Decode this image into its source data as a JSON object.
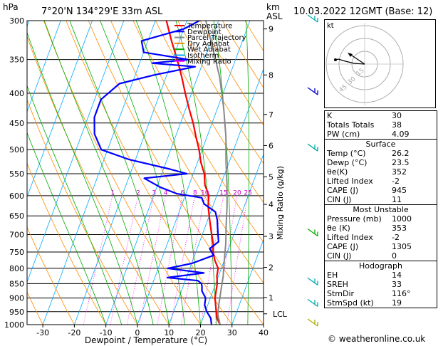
{
  "header": {
    "units_p": "hPa",
    "location": "7°20'N 134°29'E 33m ASL",
    "units_km": "km",
    "units_asl": "ASL",
    "date": "10.03.2022 12GMT (Base: 12)"
  },
  "legend": [
    {
      "label": "Temperature",
      "color": "#ff0000"
    },
    {
      "label": "Dewpoint",
      "color": "#0000ff"
    },
    {
      "label": "Parcel Trajectory",
      "color": "#888888"
    },
    {
      "label": "Dry Adiabat",
      "color": "#ff8c00"
    },
    {
      "label": "Wet Adiabat",
      "color": "#00aa00"
    },
    {
      "label": "Isotherm",
      "color": "#00aaff"
    },
    {
      "label": "Mixing Ratio",
      "color": "#ff00ff"
    }
  ],
  "chart_data": {
    "type": "line",
    "xlabel": "Dewpoint / Temperature (°C)",
    "ylabel_right": "Mixing Ratio (g/kg)",
    "x_ticks": [
      "-30",
      "-20",
      "-10",
      "0",
      "10",
      "20",
      "30",
      "40"
    ],
    "x_range": [
      -35,
      40
    ],
    "pressure_ticks": [
      "300",
      "350",
      "400",
      "450",
      "500",
      "550",
      "600",
      "650",
      "700",
      "750",
      "800",
      "850",
      "900",
      "950",
      "1000"
    ],
    "pressure_range": [
      300,
      1000
    ],
    "km_ticks": [
      {
        "label": "9",
        "p": 310
      },
      {
        "label": "8",
        "p": 372
      },
      {
        "label": "7",
        "p": 435
      },
      {
        "label": "6",
        "p": 492
      },
      {
        "label": "5",
        "p": 557
      },
      {
        "label": "4",
        "p": 621
      },
      {
        "label": "3",
        "p": 705
      },
      {
        "label": "2",
        "p": 797
      },
      {
        "label": "1",
        "p": 898
      },
      {
        "label": "LCL",
        "p": 958
      }
    ],
    "mixing_ratio_labels": [
      {
        "label": "1",
        "p": 598
      },
      {
        "label": "2",
        "p": 598
      },
      {
        "label": "3",
        "p": 598
      },
      {
        "label": "4",
        "p": 598
      },
      {
        "label": "6",
        "p": 598
      },
      {
        "label": "8",
        "p": 598
      },
      {
        "label": "10",
        "p": 598
      },
      {
        "label": "15",
        "p": 598
      },
      {
        "label": "20",
        "p": 598
      },
      {
        "label": "25",
        "p": 598
      }
    ],
    "series": [
      {
        "name": "Temperature",
        "color": "#ff0000",
        "points": [
          [
            26.2,
            1000
          ],
          [
            24.5,
            975
          ],
          [
            23.5,
            950
          ],
          [
            22.5,
            925
          ],
          [
            21.5,
            900
          ],
          [
            21.0,
            875
          ],
          [
            20.5,
            850
          ],
          [
            19.5,
            825
          ],
          [
            19.0,
            800
          ],
          [
            17.0,
            775
          ],
          [
            15.5,
            750
          ],
          [
            14.5,
            725
          ],
          [
            13.0,
            700
          ],
          [
            11.5,
            675
          ],
          [
            10.0,
            650
          ],
          [
            8.5,
            625
          ],
          [
            7.5,
            600
          ],
          [
            5.0,
            575
          ],
          [
            3.5,
            550
          ],
          [
            1.0,
            525
          ],
          [
            -1.0,
            500
          ],
          [
            -3.5,
            475
          ],
          [
            -6.0,
            450
          ],
          [
            -9.0,
            425
          ],
          [
            -12.0,
            400
          ],
          [
            -15.0,
            375
          ],
          [
            -18.5,
            350
          ],
          [
            -22.5,
            325
          ],
          [
            -26.5,
            300
          ]
        ]
      },
      {
        "name": "Dewpoint",
        "color": "#0000ff",
        "points": [
          [
            23.5,
            1000
          ],
          [
            22.5,
            975
          ],
          [
            20.5,
            950
          ],
          [
            19.0,
            925
          ],
          [
            18.5,
            900
          ],
          [
            16.5,
            875
          ],
          [
            16.0,
            860
          ],
          [
            15.5,
            850
          ],
          [
            14.0,
            840
          ],
          [
            4.0,
            830
          ],
          [
            15.0,
            815
          ],
          [
            3.0,
            800
          ],
          [
            10.0,
            785
          ],
          [
            16.0,
            760
          ],
          [
            14.0,
            740
          ],
          [
            16.0,
            720
          ],
          [
            15.0,
            700
          ],
          [
            14.0,
            680
          ],
          [
            13.0,
            660
          ],
          [
            11.5,
            640
          ],
          [
            7.0,
            620
          ],
          [
            5.5,
            605
          ],
          [
            -3.0,
            595
          ],
          [
            -9.0,
            580
          ],
          [
            -15.0,
            560
          ],
          [
            -2.0,
            550
          ],
          [
            -8.0,
            540
          ],
          [
            -22.0,
            520
          ],
          [
            -32.0,
            500
          ],
          [
            -36.0,
            470
          ],
          [
            -38.0,
            440
          ],
          [
            -38.0,
            410
          ],
          [
            -34.0,
            385
          ],
          [
            -24.0,
            372
          ],
          [
            -12.0,
            360
          ],
          [
            -26.0,
            355
          ],
          [
            -15.0,
            350
          ],
          [
            -30.0,
            340
          ],
          [
            -32.0,
            325
          ],
          [
            -20.0,
            310
          ],
          [
            -16.0,
            300
          ]
        ]
      },
      {
        "name": "Parcel Trajectory",
        "color": "#888888",
        "points": [
          [
            26.2,
            1000
          ],
          [
            24.3,
            960
          ],
          [
            23.5,
            925
          ],
          [
            22.5,
            875
          ],
          [
            21.5,
            825
          ],
          [
            20.0,
            775
          ],
          [
            18.5,
            725
          ],
          [
            16.5,
            675
          ],
          [
            14.5,
            625
          ],
          [
            12.0,
            575
          ],
          [
            9.0,
            525
          ],
          [
            6.0,
            475
          ],
          [
            2.0,
            425
          ],
          [
            -3.0,
            375
          ],
          [
            -10.0,
            325
          ],
          [
            -14.0,
            300
          ]
        ]
      }
    ]
  },
  "hodograph": {
    "label": "kt",
    "rings": [
      "45",
      "30",
      "15"
    ]
  },
  "table": {
    "top": [
      {
        "k": "K",
        "v": "30"
      },
      {
        "k": "Totals Totals",
        "v": "38"
      },
      {
        "k": "PW (cm)",
        "v": "4.09"
      }
    ],
    "surface_title": "Surface",
    "surface": [
      {
        "k": "Temp (°C)",
        "v": "26.2"
      },
      {
        "k": "Dewp (°C)",
        "v": "23.5"
      },
      {
        "k": "θe(K)",
        "v": "352"
      },
      {
        "k": "Lifted Index",
        "v": "-2"
      },
      {
        "k": "CAPE (J)",
        "v": "945"
      },
      {
        "k": "CIN (J)",
        "v": "11"
      }
    ],
    "unstable_title": "Most Unstable",
    "unstable": [
      {
        "k": "Pressure (mb)",
        "v": "1000"
      },
      {
        "k": "θe (K)",
        "v": "353"
      },
      {
        "k": "Lifted Index",
        "v": "-2"
      },
      {
        "k": "CAPE (J)",
        "v": "1305"
      },
      {
        "k": "CIN (J)",
        "v": "0"
      }
    ],
    "hodo_title": "Hodograph",
    "hodo": [
      {
        "k": "EH",
        "v": "14"
      },
      {
        "k": "SREH",
        "v": "33"
      },
      {
        "k": "StmDir",
        "v": "116°"
      },
      {
        "k": "StmSpd (kt)",
        "v": "19"
      }
    ]
  },
  "credit": "© weatheronline.co.uk"
}
